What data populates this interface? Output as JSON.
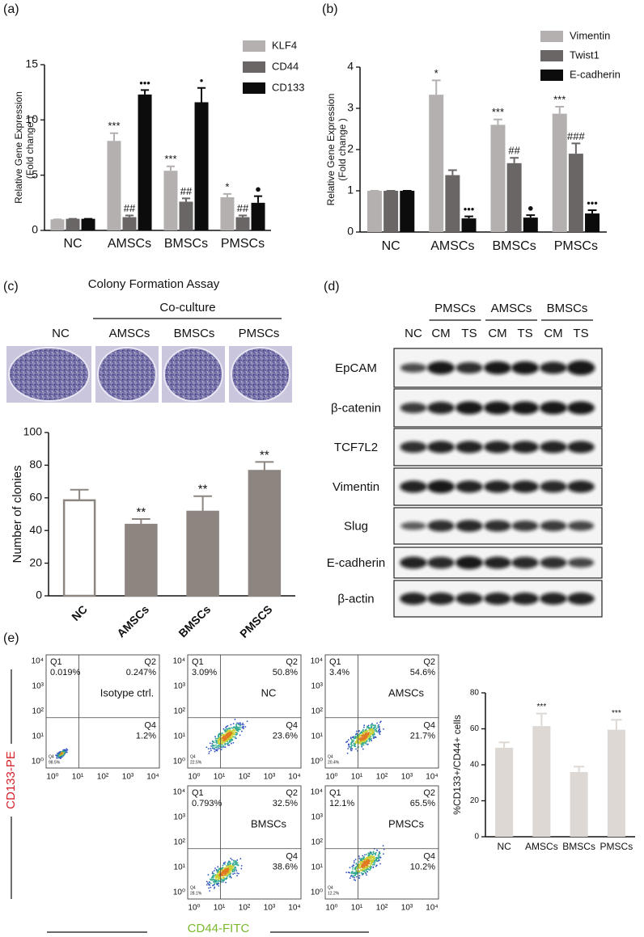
{
  "panel_labels": [
    "(a)",
    "(b)",
    "(c)",
    "(d)",
    "(e)"
  ],
  "chart_data": [
    {
      "type": "bar",
      "ylabel": [
        "Relative  Gene Expression",
        "(Fold change )"
      ],
      "categories": [
        "NC",
        "AMSCs",
        "BMSCs",
        "PMSCs"
      ],
      "ylim": [
        0,
        15
      ],
      "yticks": [
        0,
        5,
        10,
        15
      ],
      "series": [
        {
          "name": "KLF4",
          "color": "#b5b0b0",
          "values": [
            1,
            8.1,
            5.4,
            3.0
          ],
          "errors": [
            0,
            0.7,
            0.4,
            0.3
          ],
          "annotations": [
            null,
            "***",
            "***",
            "*"
          ]
        },
        {
          "name": "CD44",
          "color": "#6a6666",
          "values": [
            1.05,
            1.2,
            2.6,
            1.2
          ],
          "errors": [
            0,
            0.15,
            0.3,
            0.15
          ],
          "annotations": [
            null,
            "##",
            "##",
            "##"
          ]
        },
        {
          "name": "CD133",
          "color": "#0c0c0c",
          "values": [
            1.05,
            12.3,
            11.6,
            2.5
          ],
          "errors": [
            0,
            0.4,
            1.3,
            0.6
          ],
          "annotations": [
            null,
            "•••",
            "•",
            "●"
          ]
        }
      ]
    },
    {
      "type": "bar",
      "ylabel": [
        "Relative  Gene Expression",
        "(Fold change )"
      ],
      "categories": [
        "NC",
        "AMSCs",
        "BMSCs",
        "PMSCs"
      ],
      "ylim": [
        0,
        4
      ],
      "yticks": [
        0,
        1,
        2,
        3,
        4
      ],
      "series": [
        {
          "name": "Vimentin",
          "color": "#b5b0b0",
          "values": [
            1,
            3.33,
            2.6,
            2.87
          ],
          "errors": [
            0,
            0.35,
            0.13,
            0.17
          ],
          "annotations": [
            null,
            "*",
            "***",
            "***"
          ]
        },
        {
          "name": "Twist1",
          "color": "#6a6666",
          "values": [
            1,
            1.38,
            1.67,
            1.9
          ],
          "errors": [
            0,
            0.12,
            0.13,
            0.25
          ],
          "annotations": [
            null,
            null,
            "##",
            "###"
          ]
        },
        {
          "name": "E-cadherin",
          "color": "#0c0c0c",
          "values": [
            1,
            0.33,
            0.35,
            0.45
          ],
          "errors": [
            0,
            0.05,
            0.06,
            0.08
          ],
          "annotations": [
            null,
            "•••",
            "●",
            "•••"
          ]
        }
      ]
    },
    {
      "type": "bar",
      "ylabel": "Number of clonies",
      "categories": [
        "NC",
        "AMSCs",
        "BMSCs",
        "PMSCS"
      ],
      "ylim": [
        0,
        100
      ],
      "yticks": [
        0,
        20,
        40,
        60,
        80,
        100
      ],
      "series": [
        {
          "color": "#8c8580",
          "bar_colors": [
            "#ffffff",
            "#8c8580",
            "#8c8580",
            "#8c8580"
          ],
          "values": [
            58.5,
            43.5,
            51.5,
            76.5
          ],
          "errors": [
            6.5,
            3.5,
            9.5,
            5.5
          ],
          "annotations": [
            null,
            "**",
            "**",
            "**"
          ]
        }
      ]
    },
    {
      "type": "bar",
      "ylabel": "%CD133+/CD44+ cells",
      "categories": [
        "NC",
        "AMSCs",
        "BMSCs",
        "PMSCs"
      ],
      "ylim": [
        0,
        80
      ],
      "yticks": [
        0,
        20,
        40,
        60,
        80
      ],
      "series": [
        {
          "color": "#ddd8d3",
          "values": [
            49.5,
            61.5,
            36,
            59.5
          ],
          "errors": [
            3,
            7,
            3,
            5.5
          ],
          "annotations": [
            null,
            "***",
            null,
            "***"
          ]
        }
      ]
    }
  ],
  "colony_assay": {
    "title": "Colony Formation Assay",
    "group_label": "Co-culture",
    "plates": [
      "NC",
      "AMSCs",
      "BMSCs",
      "PMSCs"
    ]
  },
  "western_blot": {
    "groups": [
      "PMSCs",
      "AMSCs",
      "BMSCs"
    ],
    "lanes": [
      "NC",
      "CM",
      "TS",
      "CM",
      "TS",
      "CM",
      "TS"
    ],
    "proteins": [
      "EpCAM",
      "β-catenin",
      "TCF7L2",
      "Vimentin",
      "Slug",
      "E-cadherin",
      "β-actin"
    ]
  },
  "flow_cytometry": {
    "y_label": "CD133-PE",
    "y_label_color": "#d4202a",
    "x_label": "CD44-FITC",
    "x_label_color": "#7ab82e",
    "tick_labels": [
      "10⁰",
      "10¹",
      "10²",
      "10³",
      "10⁴"
    ],
    "quadrant_labels": [
      "Q1",
      "Q2",
      "Q4"
    ],
    "plots": [
      {
        "name": "Isotype ctrl.",
        "q1": "0.019%",
        "q2": "0.247%",
        "q4": "1.2%",
        "q3": "98.5%"
      },
      {
        "name": "NC",
        "q1": "3.09%",
        "q2": "50.8%",
        "q4": "23.6%",
        "q3": "22.5%"
      },
      {
        "name": "AMSCs",
        "q1": "3.4%",
        "q2": "54.6%",
        "q4": "21.7%",
        "q3": "20.4%"
      },
      {
        "name": "BMSCs",
        "q1": "0.793%",
        "q2": "32.5%",
        "q4": "38.6%",
        "q3": "28.1%"
      },
      {
        "name": "PMSCs",
        "q1": "12.1%",
        "q2": "65.5%",
        "q4": "10.2%",
        "q3": "12.2%"
      }
    ]
  }
}
